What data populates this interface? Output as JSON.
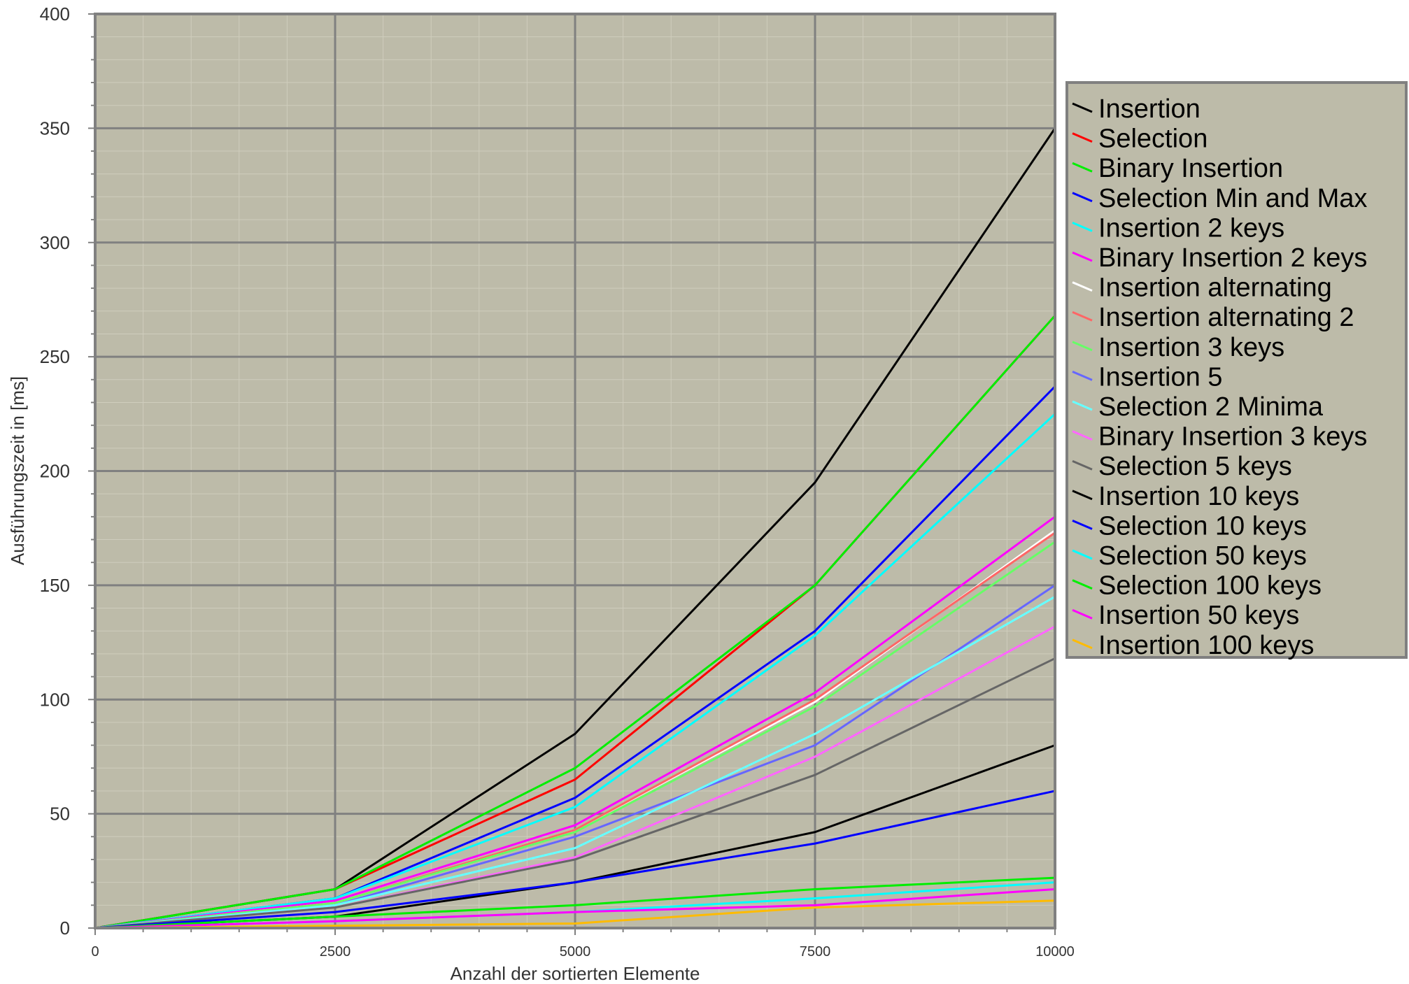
{
  "chart_data": {
    "type": "line",
    "title": "",
    "xlabel": "Anzahl der sortierten Elemente",
    "ylabel": "Ausführungszeit in [ms]",
    "x": [
      0,
      2500,
      5000,
      7500,
      10000
    ],
    "x_ticks": [
      "0",
      "2500",
      "5000",
      "7500",
      "10000"
    ],
    "y_ticks": [
      "0",
      "50",
      "100",
      "150",
      "200",
      "250",
      "300",
      "350",
      "400"
    ],
    "xlim": [
      0,
      10000
    ],
    "ylim": [
      0,
      400
    ],
    "grid": true,
    "legend_position": "right",
    "plot_background": "#bdbba9",
    "series": [
      {
        "name": "Insertion",
        "color": "#000000",
        "values": [
          0,
          17,
          85,
          195,
          350
        ]
      },
      {
        "name": "Selection",
        "color": "#ff0000",
        "values": [
          0,
          17,
          65,
          150,
          268
        ]
      },
      {
        "name": "Binary Insertion",
        "color": "#00ee00",
        "values": [
          0,
          17,
          70,
          150,
          268
        ]
      },
      {
        "name": "Selection Min and Max",
        "color": "#0000ff",
        "values": [
          0,
          13,
          57,
          130,
          237
        ]
      },
      {
        "name": "Insertion 2 keys",
        "color": "#00ffff",
        "values": [
          0,
          13,
          53,
          128,
          225
        ]
      },
      {
        "name": "Binary Insertion 2 keys",
        "color": "#ff00ff",
        "values": [
          0,
          12,
          45,
          103,
          180
        ]
      },
      {
        "name": "Insertion alternating",
        "color": "#ffffff",
        "values": [
          0,
          11,
          43,
          99,
          174
        ]
      },
      {
        "name": "Insertion alternating 2",
        "color": "#ff6666",
        "values": [
          0,
          11,
          43,
          100,
          173
        ]
      },
      {
        "name": "Insertion 3 keys",
        "color": "#66ff66",
        "values": [
          0,
          11,
          42,
          97,
          169
        ]
      },
      {
        "name": "Insertion 5",
        "color": "#6666ff",
        "values": [
          0,
          10,
          40,
          80,
          150
        ]
      },
      {
        "name": "Selection 2 Minima",
        "color": "#66ffff",
        "values": [
          0,
          10,
          35,
          85,
          145
        ]
      },
      {
        "name": "Binary Insertion 3 keys",
        "color": "#ff66ff",
        "values": [
          0,
          9,
          31,
          75,
          132
        ]
      },
      {
        "name": "Selection 5 keys",
        "color": "#666666",
        "values": [
          0,
          9,
          30,
          67,
          118
        ]
      },
      {
        "name": "Insertion 10 keys",
        "color": "#000000",
        "values": [
          0,
          5,
          20,
          42,
          80
        ]
      },
      {
        "name": "Selection 10 keys",
        "color": "#0000ff",
        "values": [
          0,
          7,
          20,
          37,
          60
        ]
      },
      {
        "name": "Selection 50 keys",
        "color": "#00ffff",
        "values": [
          0,
          3,
          7,
          13,
          20
        ]
      },
      {
        "name": "Selection 100 keys",
        "color": "#00ee00",
        "values": [
          0,
          5,
          10,
          17,
          22
        ]
      },
      {
        "name": "Insertion 50 keys",
        "color": "#ff00ff",
        "values": [
          0,
          3,
          7,
          10,
          17
        ]
      },
      {
        "name": "Insertion 100 keys",
        "color": "#ffbb00",
        "values": [
          0,
          1,
          2,
          9,
          12
        ]
      }
    ]
  }
}
